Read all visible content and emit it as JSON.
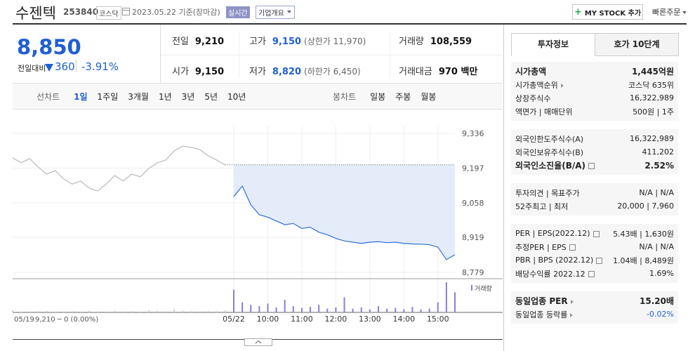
{
  "header": {
    "name": "수젠텍",
    "code": "253840",
    "market": "코스닥",
    "date": "2023.05.22 기준(장마감)",
    "realtime": "실시간",
    "overview": "기업개요",
    "mystock": "MY STOCK 추가",
    "quick_order": "빠른주문"
  },
  "quote": {
    "price": "8,850",
    "change_label": "전일대비",
    "change": "360",
    "change_rate": "-3.91%",
    "rows": [
      [
        {
          "label": "전일",
          "value": "9,210"
        },
        {
          "label": "고가",
          "value": "9,150",
          "note": "(상한가 11,970)"
        },
        {
          "label": "거래량",
          "value": "108,559"
        }
      ],
      [
        {
          "label": "시가",
          "value": "9,150"
        },
        {
          "label": "저가",
          "value": "8,820",
          "note": "(하한가 6,450)"
        },
        {
          "label": "거래대금",
          "value": "970 백만"
        }
      ]
    ]
  },
  "toolbar": {
    "line_label": "선차트",
    "line_periods": [
      "1일",
      "1주일",
      "3개월",
      "1년",
      "3년",
      "5년",
      "10년"
    ],
    "candle_label": "봉차트",
    "candle_periods": [
      "일봉",
      "주봉",
      "월봉"
    ]
  },
  "chart_data": {
    "type": "line",
    "xlim": [
      0,
      13
    ],
    "ylim": [
      8779,
      9336
    ],
    "yticks": [
      {
        "value": 9336,
        "label": "9,336"
      },
      {
        "value": 9197,
        "label": "9,197"
      },
      {
        "value": 9058,
        "label": "9,058"
      },
      {
        "value": 8919,
        "label": "8,919"
      },
      {
        "value": 8779,
        "label": "8,779"
      }
    ],
    "xticks": [
      {
        "value": 6.5,
        "label": "05/22"
      },
      {
        "value": 7.5,
        "label": "10:00"
      },
      {
        "value": 8.5,
        "label": "11:00"
      },
      {
        "value": 9.5,
        "label": "12:00"
      },
      {
        "value": 10.5,
        "label": "13:00"
      },
      {
        "value": 11.5,
        "label": "14:00"
      },
      {
        "value": 12.5,
        "label": "15:00"
      }
    ],
    "start_label": "05/19",
    "start_info": "9,210 ─ 0 (0.00%)",
    "reference": 9210,
    "grid": true,
    "volume_label": "거래량",
    "series": [
      {
        "color": "#b9b9b9",
        "volume_color": "#cfcfcf",
        "x": [
          0,
          0.25,
          0.5,
          0.75,
          1,
          1.25,
          1.5,
          1.75,
          2,
          2.25,
          2.5,
          2.75,
          3,
          3.25,
          3.5,
          3.75,
          4,
          4.25,
          4.5,
          4.75,
          5,
          5.25,
          5.5,
          5.75,
          6,
          6.25
        ],
        "values": [
          9238,
          9218,
          9235,
          9201,
          9173,
          9187,
          9153,
          9133,
          9145,
          9117,
          9105,
          9133,
          9167,
          9145,
          9173,
          9162,
          9195,
          9218,
          9229,
          9266,
          9285,
          9280,
          9271,
          9246,
          9229,
          9209
        ],
        "volume": [
          800,
          300,
          400,
          500,
          600,
          300,
          400,
          500,
          300,
          700,
          400,
          300,
          600,
          400,
          500,
          300,
          900,
          600,
          400,
          1200,
          700,
          500,
          400,
          600,
          500,
          800
        ]
      },
      {
        "color": "#2f6fd8",
        "fill": "#e4ecfa",
        "volume_color": "#8a7fd6",
        "x": [
          6.5,
          6.75,
          7,
          7.25,
          7.5,
          7.75,
          8,
          8.25,
          8.5,
          8.75,
          9,
          9.25,
          9.5,
          9.75,
          10,
          10.25,
          10.5,
          10.75,
          11,
          11.25,
          11.5,
          11.75,
          12,
          12.25,
          12.5,
          12.75,
          13
        ],
        "values": [
          9083,
          9125,
          9050,
          9010,
          9000,
          8985,
          8970,
          8975,
          8955,
          8960,
          8940,
          8930,
          8915,
          8905,
          8900,
          8895,
          8900,
          8902,
          8898,
          8900,
          8895,
          8893,
          8892,
          8890,
          8880,
          8830,
          8850
        ],
        "volume": [
          9000,
          4000,
          3000,
          2500,
          3500,
          2000,
          5000,
          2500,
          1800,
          2200,
          3000,
          1500,
          2000,
          6000,
          1500,
          2000,
          1200,
          2500,
          1500,
          1800,
          1300,
          2200,
          1200,
          1500,
          4000,
          12000,
          8000
        ]
      }
    ]
  },
  "invest": {
    "tabs": [
      "투자정보",
      "호가 10단계"
    ],
    "groups": [
      [
        {
          "label": "시가총액",
          "value": "1,445억원",
          "bold": true
        },
        {
          "label": "시가총액순위",
          "value": "코스닥 635위",
          "link": true
        },
        {
          "label": "상장주식수",
          "value": "16,322,989"
        },
        {
          "label": "액면가 | 매매단위",
          "value": "500원 | 1주"
        }
      ],
      [
        {
          "label": "외국인한도주식수(A)",
          "value": "16,322,989"
        },
        {
          "label": "외국인보유주식수(B)",
          "value": "411,202"
        },
        {
          "label": "외국인소진율(B/A)",
          "value": "2.52%",
          "bold": true,
          "help": true
        }
      ],
      [
        {
          "label": "투자의견 | 목표주가",
          "value": "N/A | N/A"
        },
        {
          "label": "52주최고 | 최저",
          "value": "20,000 | 7,960"
        }
      ],
      [
        {
          "label": "PER | EPS(2022.12)",
          "value": "5.43배 | 1,630원",
          "help": true
        },
        {
          "label": "추정PER | EPS",
          "value": "N/A | N/A",
          "help": true
        },
        {
          "label": "PBR | BPS (2022.12)",
          "value": "1.04배 | 8,489원",
          "help": true
        },
        {
          "label": "배당수익률 2022.12",
          "value": "1.69%",
          "help": true
        }
      ],
      [
        {
          "label": "동일업종 PER",
          "value": "15.20배",
          "bold": true,
          "link": true
        },
        {
          "label": "동일업종 등락률",
          "value": "-0.02%",
          "link": true,
          "blue": true
        }
      ]
    ]
  }
}
